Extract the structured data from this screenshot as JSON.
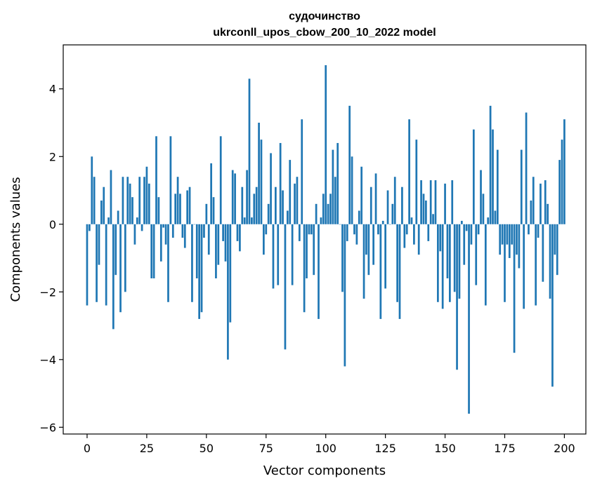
{
  "chart_data": {
    "type": "bar",
    "title": "судочинство",
    "subtitle": "ukrconll_upos_cbow_200_10_2022 model",
    "xlabel": "Vector components",
    "ylabel": "Components values",
    "xlim": [
      -10,
      209
    ],
    "ylim": [
      -6.2,
      5.3
    ],
    "xticks": [
      0,
      25,
      50,
      75,
      100,
      125,
      150,
      175,
      200
    ],
    "yticks": [
      -6,
      -4,
      -2,
      0,
      2,
      4
    ],
    "ytick_labels": [
      "−6",
      "−4",
      "−2",
      "0",
      "2",
      "4"
    ],
    "grid": false,
    "bar_color": "#1f77b4",
    "values": [
      -2.4,
      -0.2,
      2.0,
      1.4,
      -2.3,
      -1.2,
      0.7,
      1.1,
      -2.4,
      0.2,
      1.6,
      -3.1,
      -1.5,
      0.4,
      -2.6,
      1.4,
      -2.0,
      1.4,
      1.2,
      0.8,
      -0.6,
      0.2,
      1.4,
      -0.2,
      1.4,
      1.7,
      1.2,
      -1.6,
      -1.6,
      2.6,
      0.8,
      -1.1,
      -0.1,
      -0.6,
      -2.3,
      2.6,
      -0.4,
      0.9,
      1.4,
      0.9,
      -0.4,
      -0.7,
      1.0,
      1.1,
      -2.3,
      0.0,
      -1.6,
      -2.8,
      -2.6,
      -0.4,
      0.6,
      -0.9,
      1.8,
      0.8,
      -1.6,
      -1.2,
      2.6,
      -0.5,
      -1.1,
      -4.0,
      -2.9,
      1.6,
      1.5,
      -0.5,
      -0.8,
      1.1,
      0.2,
      1.6,
      4.3,
      0.2,
      0.9,
      1.1,
      3.0,
      2.5,
      -0.9,
      -0.3,
      0.6,
      2.1,
      -1.9,
      1.1,
      -1.8,
      2.4,
      1.0,
      -3.7,
      0.4,
      1.9,
      -1.8,
      1.2,
      1.4,
      -0.5,
      3.1,
      -2.6,
      -1.6,
      -0.3,
      -0.3,
      -1.5,
      0.6,
      -2.8,
      0.2,
      0.9,
      4.7,
      0.6,
      0.9,
      2.2,
      1.4,
      2.4,
      0.0,
      -2.0,
      -4.2,
      -0.5,
      3.5,
      2.0,
      -0.3,
      -0.6,
      0.4,
      1.7,
      -2.2,
      -0.9,
      -1.5,
      1.1,
      -1.2,
      1.5,
      -0.3,
      -2.8,
      0.1,
      -1.9,
      1.0,
      0.0,
      0.6,
      1.4,
      -2.3,
      -2.8,
      1.1,
      -0.7,
      -0.3,
      3.1,
      0.2,
      -0.6,
      2.5,
      -0.9,
      1.3,
      0.9,
      0.7,
      -0.5,
      1.3,
      0.3,
      1.3,
      -2.3,
      -0.8,
      -2.5,
      1.2,
      -1.6,
      -2.3,
      1.3,
      -2.0,
      -4.3,
      -2.2,
      0.1,
      -1.2,
      -0.2,
      -5.6,
      -0.6,
      2.8,
      -1.8,
      -0.3,
      1.6,
      0.9,
      -2.4,
      0.2,
      3.5,
      2.8,
      0.4,
      2.2,
      -0.9,
      -0.6,
      -2.3,
      -0.6,
      -1.0,
      -0.6,
      -3.8,
      -0.9,
      -1.3,
      2.2,
      -2.5,
      3.3,
      -0.3,
      0.7,
      1.4,
      -2.4,
      -0.4,
      1.2,
      -1.7,
      1.3,
      0.6,
      -2.2,
      -4.8,
      -0.9,
      -1.5,
      1.9,
      2.5,
      3.1
    ]
  }
}
